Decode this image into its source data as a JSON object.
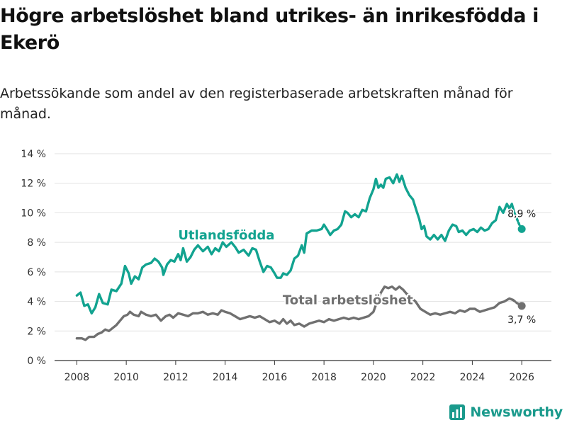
{
  "title": "Högre arbetslöshet bland utrikes- än inrikesfödda i Ekerö",
  "subtitle": "Arbetssökande som andel av den registerbaserade arbetskraften månad för månad.",
  "brand": "Newsworthy",
  "colors": {
    "teal": "#12A390",
    "gray": "#707070",
    "grid": "#e2e2e2",
    "axis": "#333333"
  },
  "chart_data": {
    "type": "line",
    "x_range": [
      2007.1,
      2027.2
    ],
    "ylim": [
      0,
      14
    ],
    "xticks": [
      2008,
      2010,
      2012,
      2014,
      2016,
      2018,
      2020,
      2022,
      2024,
      2026
    ],
    "xtick_labels": [
      "2008",
      "2010",
      "2012",
      "2014",
      "2016",
      "2018",
      "2020",
      "2022",
      "2024",
      "2026"
    ],
    "yticks": [
      0,
      2,
      4,
      6,
      8,
      10,
      12,
      14
    ],
    "ytick_labels": [
      "0 %",
      "2 %",
      "4 %",
      "6 %",
      "8 %",
      "10 %",
      "12 %",
      "14 %"
    ],
    "series": [
      {
        "name": "Utlandsfödda",
        "label": "Utlandsfödda",
        "color": "#12A390",
        "end_label": "8,9 %",
        "points": [
          [
            2008.0,
            4.4
          ],
          [
            2008.15,
            4.6
          ],
          [
            2008.3,
            3.7
          ],
          [
            2008.45,
            3.8
          ],
          [
            2008.6,
            3.2
          ],
          [
            2008.75,
            3.6
          ],
          [
            2008.9,
            4.5
          ],
          [
            2009.05,
            3.9
          ],
          [
            2009.25,
            3.8
          ],
          [
            2009.4,
            4.8
          ],
          [
            2009.6,
            4.7
          ],
          [
            2009.8,
            5.2
          ],
          [
            2009.95,
            6.4
          ],
          [
            2010.1,
            5.9
          ],
          [
            2010.2,
            5.2
          ],
          [
            2010.35,
            5.7
          ],
          [
            2010.5,
            5.5
          ],
          [
            2010.65,
            6.3
          ],
          [
            2010.8,
            6.5
          ],
          [
            2011.0,
            6.6
          ],
          [
            2011.15,
            6.9
          ],
          [
            2011.3,
            6.7
          ],
          [
            2011.45,
            6.3
          ],
          [
            2011.5,
            5.8
          ],
          [
            2011.65,
            6.5
          ],
          [
            2011.8,
            6.8
          ],
          [
            2011.95,
            6.7
          ],
          [
            2012.1,
            7.2
          ],
          [
            2012.2,
            6.8
          ],
          [
            2012.3,
            7.6
          ],
          [
            2012.45,
            6.7
          ],
          [
            2012.6,
            7.0
          ],
          [
            2012.75,
            7.5
          ],
          [
            2012.9,
            7.8
          ],
          [
            2013.1,
            7.4
          ],
          [
            2013.3,
            7.7
          ],
          [
            2013.45,
            7.2
          ],
          [
            2013.6,
            7.6
          ],
          [
            2013.75,
            7.4
          ],
          [
            2013.9,
            8.0
          ],
          [
            2014.05,
            7.7
          ],
          [
            2014.25,
            8.0
          ],
          [
            2014.4,
            7.7
          ],
          [
            2014.55,
            7.3
          ],
          [
            2014.75,
            7.5
          ],
          [
            2014.95,
            7.1
          ],
          [
            2015.1,
            7.6
          ],
          [
            2015.25,
            7.5
          ],
          [
            2015.4,
            6.7
          ],
          [
            2015.55,
            6.0
          ],
          [
            2015.7,
            6.4
          ],
          [
            2015.85,
            6.3
          ],
          [
            2016.0,
            5.9
          ],
          [
            2016.1,
            5.6
          ],
          [
            2016.25,
            5.6
          ],
          [
            2016.35,
            5.9
          ],
          [
            2016.5,
            5.8
          ],
          [
            2016.65,
            6.1
          ],
          [
            2016.8,
            6.9
          ],
          [
            2016.95,
            7.1
          ],
          [
            2017.1,
            7.8
          ],
          [
            2017.2,
            7.3
          ],
          [
            2017.3,
            8.6
          ],
          [
            2017.5,
            8.8
          ],
          [
            2017.7,
            8.8
          ],
          [
            2017.9,
            8.9
          ],
          [
            2018.0,
            9.2
          ],
          [
            2018.15,
            8.8
          ],
          [
            2018.25,
            8.5
          ],
          [
            2018.4,
            8.8
          ],
          [
            2018.55,
            8.9
          ],
          [
            2018.7,
            9.2
          ],
          [
            2018.85,
            10.1
          ],
          [
            2018.95,
            10.0
          ],
          [
            2019.1,
            9.7
          ],
          [
            2019.25,
            9.9
          ],
          [
            2019.4,
            9.7
          ],
          [
            2019.55,
            10.2
          ],
          [
            2019.7,
            10.1
          ],
          [
            2019.85,
            11.0
          ],
          [
            2020.0,
            11.6
          ],
          [
            2020.1,
            12.3
          ],
          [
            2020.2,
            11.7
          ],
          [
            2020.3,
            11.9
          ],
          [
            2020.4,
            11.7
          ],
          [
            2020.5,
            12.3
          ],
          [
            2020.65,
            12.4
          ],
          [
            2020.8,
            12.0
          ],
          [
            2020.95,
            12.6
          ],
          [
            2021.05,
            12.1
          ],
          [
            2021.15,
            12.5
          ],
          [
            2021.3,
            11.7
          ],
          [
            2021.45,
            11.2
          ],
          [
            2021.6,
            10.9
          ],
          [
            2021.75,
            10.1
          ],
          [
            2021.85,
            9.6
          ],
          [
            2021.95,
            8.9
          ],
          [
            2022.05,
            9.1
          ],
          [
            2022.15,
            8.4
          ],
          [
            2022.3,
            8.2
          ],
          [
            2022.45,
            8.5
          ],
          [
            2022.6,
            8.2
          ],
          [
            2022.75,
            8.5
          ],
          [
            2022.9,
            8.1
          ],
          [
            2023.05,
            8.8
          ],
          [
            2023.2,
            9.2
          ],
          [
            2023.35,
            9.1
          ],
          [
            2023.45,
            8.7
          ],
          [
            2023.6,
            8.8
          ],
          [
            2023.75,
            8.5
          ],
          [
            2023.9,
            8.8
          ],
          [
            2024.05,
            8.9
          ],
          [
            2024.2,
            8.7
          ],
          [
            2024.35,
            9.0
          ],
          [
            2024.5,
            8.8
          ],
          [
            2024.65,
            8.9
          ],
          [
            2024.8,
            9.3
          ],
          [
            2024.95,
            9.5
          ],
          [
            2025.1,
            10.4
          ],
          [
            2025.25,
            10.0
          ],
          [
            2025.4,
            10.6
          ],
          [
            2025.5,
            10.3
          ],
          [
            2025.6,
            10.6
          ],
          [
            2025.7,
            10.0
          ],
          [
            2025.8,
            9.6
          ],
          [
            2025.9,
            9.2
          ],
          [
            2026.0,
            8.9
          ]
        ]
      },
      {
        "name": "Total arbetslöshet",
        "label": "Total arbetslöshet",
        "color": "#707070",
        "end_label": "3,7 %",
        "points": [
          [
            2008.0,
            1.5
          ],
          [
            2008.2,
            1.5
          ],
          [
            2008.35,
            1.4
          ],
          [
            2008.5,
            1.6
          ],
          [
            2008.7,
            1.6
          ],
          [
            2008.85,
            1.8
          ],
          [
            2009.0,
            1.9
          ],
          [
            2009.15,
            2.1
          ],
          [
            2009.3,
            2.0
          ],
          [
            2009.45,
            2.2
          ],
          [
            2009.6,
            2.4
          ],
          [
            2009.75,
            2.7
          ],
          [
            2009.9,
            3.0
          ],
          [
            2010.05,
            3.1
          ],
          [
            2010.15,
            3.3
          ],
          [
            2010.3,
            3.1
          ],
          [
            2010.5,
            3.0
          ],
          [
            2010.6,
            3.3
          ],
          [
            2010.8,
            3.1
          ],
          [
            2011.0,
            3.0
          ],
          [
            2011.2,
            3.1
          ],
          [
            2011.4,
            2.7
          ],
          [
            2011.6,
            3.0
          ],
          [
            2011.75,
            3.1
          ],
          [
            2011.9,
            2.9
          ],
          [
            2012.1,
            3.2
          ],
          [
            2012.3,
            3.1
          ],
          [
            2012.5,
            3.0
          ],
          [
            2012.7,
            3.2
          ],
          [
            2012.9,
            3.2
          ],
          [
            2013.1,
            3.3
          ],
          [
            2013.3,
            3.1
          ],
          [
            2013.5,
            3.2
          ],
          [
            2013.7,
            3.1
          ],
          [
            2013.85,
            3.4
          ],
          [
            2014.0,
            3.3
          ],
          [
            2014.2,
            3.2
          ],
          [
            2014.4,
            3.0
          ],
          [
            2014.6,
            2.8
          ],
          [
            2014.8,
            2.9
          ],
          [
            2015.0,
            3.0
          ],
          [
            2015.2,
            2.9
          ],
          [
            2015.4,
            3.0
          ],
          [
            2015.6,
            2.8
          ],
          [
            2015.8,
            2.6
          ],
          [
            2016.0,
            2.7
          ],
          [
            2016.2,
            2.5
          ],
          [
            2016.35,
            2.8
          ],
          [
            2016.5,
            2.5
          ],
          [
            2016.65,
            2.7
          ],
          [
            2016.8,
            2.4
          ],
          [
            2017.0,
            2.5
          ],
          [
            2017.2,
            2.3
          ],
          [
            2017.4,
            2.5
          ],
          [
            2017.6,
            2.6
          ],
          [
            2017.8,
            2.7
          ],
          [
            2018.0,
            2.6
          ],
          [
            2018.2,
            2.8
          ],
          [
            2018.4,
            2.7
          ],
          [
            2018.6,
            2.8
          ],
          [
            2018.8,
            2.9
          ],
          [
            2019.0,
            2.8
          ],
          [
            2019.2,
            2.9
          ],
          [
            2019.4,
            2.8
          ],
          [
            2019.6,
            2.9
          ],
          [
            2019.8,
            3.0
          ],
          [
            2020.0,
            3.3
          ],
          [
            2020.15,
            4.0
          ],
          [
            2020.3,
            4.6
          ],
          [
            2020.45,
            5.0
          ],
          [
            2020.6,
            4.9
          ],
          [
            2020.75,
            5.0
          ],
          [
            2020.9,
            4.8
          ],
          [
            2021.05,
            5.0
          ],
          [
            2021.2,
            4.8
          ],
          [
            2021.35,
            4.5
          ],
          [
            2021.5,
            4.3
          ],
          [
            2021.7,
            4.0
          ],
          [
            2021.9,
            3.5
          ],
          [
            2022.1,
            3.3
          ],
          [
            2022.3,
            3.1
          ],
          [
            2022.5,
            3.2
          ],
          [
            2022.7,
            3.1
          ],
          [
            2022.9,
            3.2
          ],
          [
            2023.1,
            3.3
          ],
          [
            2023.3,
            3.2
          ],
          [
            2023.5,
            3.4
          ],
          [
            2023.7,
            3.3
          ],
          [
            2023.9,
            3.5
          ],
          [
            2024.1,
            3.5
          ],
          [
            2024.3,
            3.3
          ],
          [
            2024.5,
            3.4
          ],
          [
            2024.7,
            3.5
          ],
          [
            2024.9,
            3.6
          ],
          [
            2025.1,
            3.9
          ],
          [
            2025.3,
            4.0
          ],
          [
            2025.5,
            4.2
          ],
          [
            2025.65,
            4.1
          ],
          [
            2025.8,
            3.9
          ],
          [
            2026.0,
            3.7
          ]
        ]
      }
    ]
  }
}
